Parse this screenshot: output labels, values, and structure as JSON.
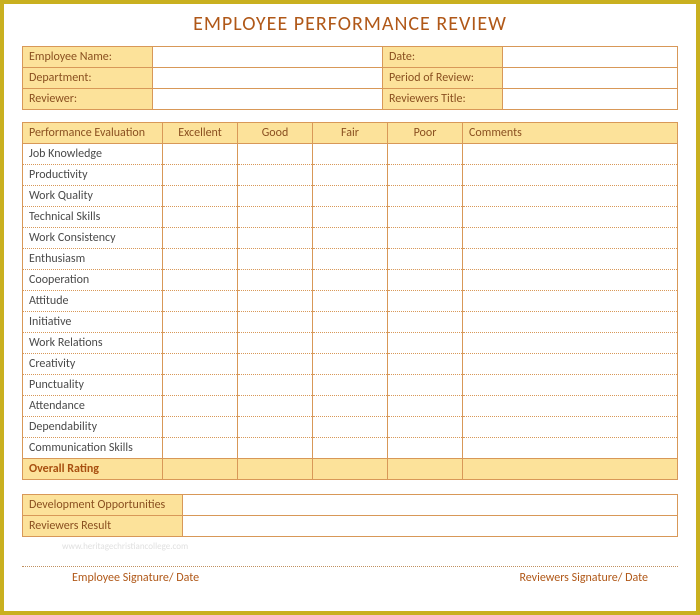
{
  "title": "EMPLOYEE PERFORMANCE REVIEW",
  "header": {
    "employee_name_label": "Employee Name:",
    "employee_name_value": "",
    "date_label": "Date:",
    "date_value": "",
    "department_label": "Department:",
    "department_value": "",
    "period_label": "Period of Review:",
    "period_value": "",
    "reviewer_label": "Reviewer:",
    "reviewer_value": "",
    "reviewer_title_label": "Reviewers Title:",
    "reviewer_title_value": ""
  },
  "evaluation": {
    "col_performance": "Performance Evaluation",
    "col_excellent": "Excellent",
    "col_good": "Good",
    "col_fair": "Fair",
    "col_poor": "Poor",
    "col_comments": "Comments",
    "criteria": [
      "Job Knowledge",
      "Productivity",
      "Work Quality",
      "Technical Skills",
      "Work Consistency",
      "Enthusiasm",
      "Cooperation",
      "Attitude",
      "Initiative",
      "Work Relations",
      "Creativity",
      "Punctuality",
      "Attendance",
      "Dependability",
      "Communication Skills"
    ],
    "overall_label": "Overall Rating"
  },
  "bottom": {
    "development_label": "Development Opportunities",
    "development_value": "",
    "result_label": "Reviewers Result",
    "result_value": ""
  },
  "watermark": "www.heritagechristiancollege.com",
  "signatures": {
    "employee": "Employee Signature/ Date",
    "reviewer": "Reviewers Signature/ Date"
  },
  "colors": {
    "border": "#c9b020",
    "cell_bg": "#fce29a",
    "cell_border": "#d89858",
    "heading_text": "#b05818",
    "label_text": "#8a5020",
    "body_text": "#4a4a4a"
  }
}
